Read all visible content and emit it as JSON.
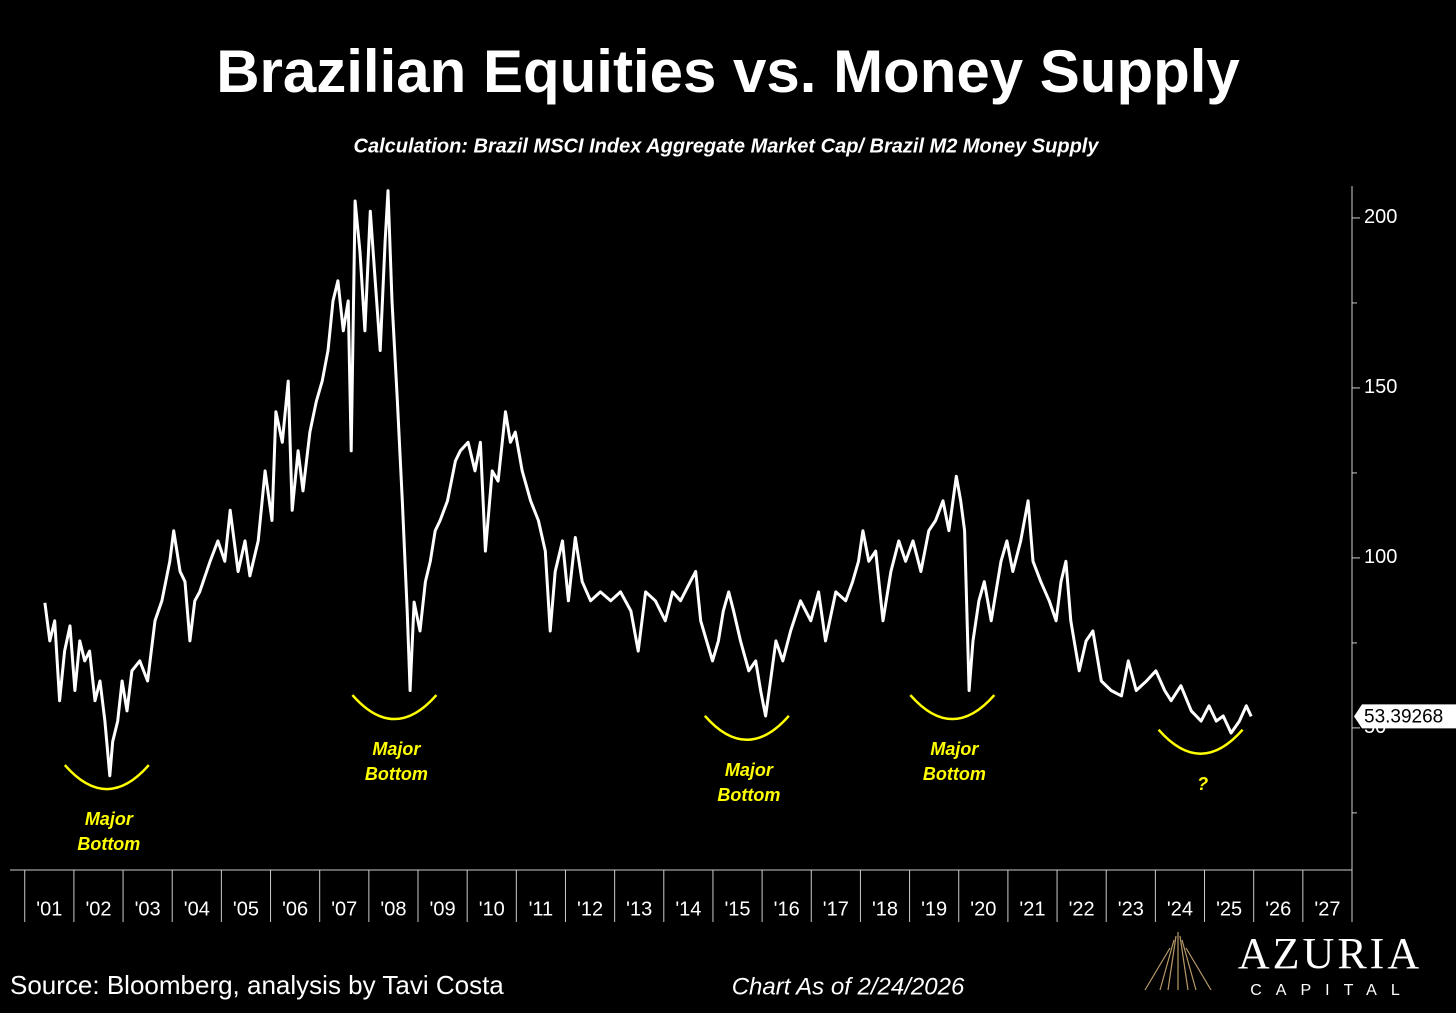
{
  "chart_data": {
    "type": "line",
    "title": "Brazilian Equities vs. Money Supply",
    "subtitle": "Calculation: Brazil MSCI Index Aggregate Market Cap/ Brazil M2 Money Supply",
    "color": "#ffffff",
    "xlim": [
      2000.7,
      2028.0
    ],
    "ylim": [
      8.2,
      209.4
    ],
    "yticks": [
      50,
      100,
      150,
      200
    ],
    "xticks": [
      {
        "value": 2001.5,
        "label": "'01"
      },
      {
        "value": 2002.5,
        "label": "'02"
      },
      {
        "value": 2003.5,
        "label": "'03"
      },
      {
        "value": 2004.5,
        "label": "'04"
      },
      {
        "value": 2005.5,
        "label": "'05"
      },
      {
        "value": 2006.5,
        "label": "'06"
      },
      {
        "value": 2007.5,
        "label": "'07"
      },
      {
        "value": 2008.5,
        "label": "'08"
      },
      {
        "value": 2009.5,
        "label": "'09"
      },
      {
        "value": 2010.5,
        "label": "'10"
      },
      {
        "value": 2011.5,
        "label": "'11"
      },
      {
        "value": 2012.5,
        "label": "'12"
      },
      {
        "value": 2013.5,
        "label": "'13"
      },
      {
        "value": 2014.5,
        "label": "'14"
      },
      {
        "value": 2015.5,
        "label": "'15"
      },
      {
        "value": 2016.5,
        "label": "'16"
      },
      {
        "value": 2017.5,
        "label": "'17"
      },
      {
        "value": 2018.5,
        "label": "'18"
      },
      {
        "value": 2019.5,
        "label": "'19"
      },
      {
        "value": 2020.5,
        "label": "'20"
      },
      {
        "value": 2021.5,
        "label": "'21"
      },
      {
        "value": 2022.5,
        "label": "'22"
      },
      {
        "value": 2023.5,
        "label": "'23"
      },
      {
        "value": 2024.5,
        "label": "'24"
      },
      {
        "value": 2025.5,
        "label": "'25"
      },
      {
        "value": 2026.5,
        "label": "'26"
      },
      {
        "value": 2027.5,
        "label": "'27"
      }
    ],
    "x": [
      2001.41,
      2001.51,
      2001.61,
      2001.71,
      2001.81,
      2001.92,
      2002.02,
      2002.12,
      2002.22,
      2002.32,
      2002.43,
      2002.53,
      2002.63,
      2002.73,
      2002.79,
      2002.89,
      2002.98,
      2003.08,
      2003.18,
      2003.34,
      2003.5,
      2003.65,
      2003.79,
      2003.95,
      2004.03,
      2004.16,
      2004.26,
      2004.36,
      2004.46,
      2004.56,
      2004.77,
      2004.93,
      2005.07,
      2005.18,
      2005.34,
      2005.48,
      2005.58,
      2005.75,
      2005.89,
      2006.03,
      2006.11,
      2006.24,
      2006.36,
      2006.44,
      2006.56,
      2006.66,
      2006.8,
      2006.93,
      2007.05,
      2007.17,
      2007.27,
      2007.37,
      2007.48,
      2007.58,
      2007.64,
      2007.72,
      2007.82,
      2007.92,
      2008.03,
      2008.13,
      2008.23,
      2008.33,
      2008.39,
      2008.47,
      2008.58,
      2008.68,
      2008.78,
      2008.84,
      2008.92,
      2009.04,
      2009.15,
      2009.25,
      2009.35,
      2009.45,
      2009.6,
      2009.76,
      2009.86,
      2010.02,
      2010.16,
      2010.27,
      2010.37,
      2010.51,
      2010.63,
      2010.78,
      2010.88,
      2010.98,
      2011.12,
      2011.29,
      2011.45,
      2011.59,
      2011.69,
      2011.79,
      2011.94,
      2012.06,
      2012.2,
      2012.34,
      2012.51,
      2012.71,
      2012.92,
      2013.12,
      2013.33,
      2013.48,
      2013.63,
      2013.83,
      2014.03,
      2014.18,
      2014.34,
      2014.54,
      2014.65,
      2014.75,
      2014.87,
      2014.99,
      2015.11,
      2015.21,
      2015.32,
      2015.42,
      2015.56,
      2015.73,
      2015.87,
      2015.97,
      2016.07,
      2016.17,
      2016.28,
      2016.42,
      2016.58,
      2016.78,
      2016.99,
      2017.15,
      2017.29,
      2017.5,
      2017.7,
      2017.84,
      2017.96,
      2018.05,
      2018.17,
      2018.31,
      2018.46,
      2018.62,
      2018.78,
      2018.92,
      2019.07,
      2019.23,
      2019.39,
      2019.53,
      2019.68,
      2019.8,
      2019.95,
      2020.04,
      2020.12,
      2020.21,
      2020.29,
      2020.41,
      2020.52,
      2020.66,
      2020.86,
      2020.98,
      2021.1,
      2021.26,
      2021.41,
      2021.51,
      2021.67,
      2021.84,
      2021.98,
      2022.08,
      2022.18,
      2022.28,
      2022.45,
      2022.59,
      2022.73,
      2022.9,
      2023.1,
      2023.31,
      2023.45,
      2023.61,
      2023.82,
      2024.01,
      2024.19,
      2024.32,
      2024.52,
      2024.73,
      2024.93,
      2025.09,
      2025.24,
      2025.38,
      2025.54,
      2025.71,
      2025.85,
      2025.95
    ],
    "values": [
      86.8,
      75.6,
      81.5,
      58,
      72.6,
      80,
      61,
      75.6,
      69.7,
      72.6,
      58,
      63.8,
      52,
      35.9,
      46,
      52,
      63.8,
      55,
      66.8,
      69.7,
      63.8,
      81.5,
      87.4,
      99,
      108,
      96,
      93,
      75.6,
      87.4,
      90,
      99,
      105,
      99,
      114,
      96,
      105,
      94.7,
      105,
      125.6,
      111,
      143,
      134,
      152,
      114,
      131.5,
      119.7,
      137,
      146,
      152,
      161,
      175.6,
      181.5,
      166.8,
      175.6,
      131.5,
      205,
      190,
      166.8,
      202,
      181.5,
      161,
      193,
      208,
      175.6,
      146,
      116.8,
      84.4,
      61,
      87,
      78.5,
      93,
      99,
      108,
      111,
      116.8,
      128.5,
      131.5,
      134,
      125.6,
      134,
      102,
      125.6,
      122.6,
      143,
      134,
      137,
      125.6,
      116.8,
      111,
      102,
      78.5,
      96,
      105,
      87.4,
      106,
      93,
      87.4,
      90,
      87.4,
      90,
      84.4,
      72.6,
      90,
      87.4,
      81.5,
      90,
      87.4,
      93,
      96,
      81.5,
      75.6,
      69.7,
      75.6,
      84.4,
      90,
      84.4,
      75.6,
      66.8,
      69.7,
      61,
      53.5,
      63.8,
      75.6,
      69.7,
      78.5,
      87.4,
      81.5,
      90,
      75.6,
      90,
      87.4,
      93,
      99,
      108,
      99,
      102,
      81.5,
      96,
      105,
      99,
      105,
      96,
      108,
      111,
      116.8,
      108,
      124,
      116.8,
      108,
      61,
      75.6,
      87.4,
      93,
      81.5,
      99,
      105,
      96,
      105,
      116.8,
      99,
      93,
      87.4,
      81.5,
      93,
      99,
      81.5,
      66.8,
      75.6,
      78.5,
      63.8,
      61,
      59.4,
      69.7,
      61,
      63.8,
      66.8,
      61,
      58,
      62.4,
      55,
      52,
      56.5,
      52,
      53.5,
      48.5,
      52,
      56.5,
      53.39268
    ],
    "annotations": [
      {
        "text": "Major Bottom",
        "x": 2002.67,
        "y": 32
      },
      {
        "text": "Major Bottom",
        "x": 2008.52,
        "y": 52.6
      },
      {
        "text": "Major Bottom",
        "x": 2015.69,
        "y": 46.5
      },
      {
        "text": "Major Bottom",
        "x": 2019.87,
        "y": 52.6
      },
      {
        "text": "?",
        "x": 2024.92,
        "y": 42.4
      }
    ],
    "annotation_color": "#ffff00",
    "source": "Source: Bloomberg, analysis by Tavi Costa",
    "note": "Chart As of 2/24/2026"
  },
  "logo": {
    "name": "AZURIA",
    "tagline": "CAPITAL"
  }
}
